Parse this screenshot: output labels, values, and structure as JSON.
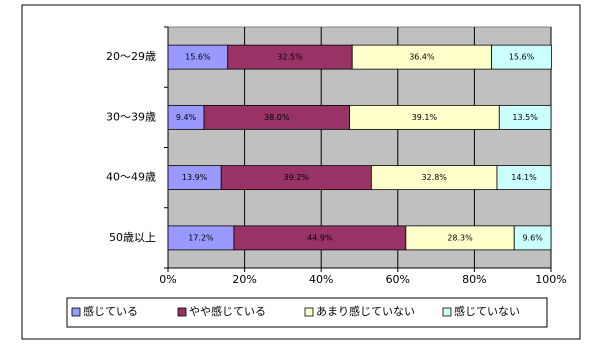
{
  "chart_data": {
    "type": "stacked-barh",
    "categories": [
      "20〜29歳",
      "30〜39歳",
      "40〜49歳",
      "50歳以上"
    ],
    "series": [
      {
        "name": "感じている",
        "color": "#9999ff",
        "values": [
          15.6,
          9.4,
          13.9,
          17.2
        ],
        "value_labels": [
          "15.6%",
          "9.4%",
          "13.9%",
          "17.2%"
        ]
      },
      {
        "name": "やや感じている",
        "color": "#993366",
        "values": [
          32.5,
          38.0,
          39.2,
          44.9
        ],
        "value_labels": [
          "32.5%",
          "38.0%",
          "39.2%",
          "44.9%"
        ]
      },
      {
        "name": "あまり感じていない",
        "color": "#ffffcc",
        "values": [
          36.4,
          39.1,
          32.8,
          28.3
        ],
        "value_labels": [
          "36.4%",
          "39.1%",
          "32.8%",
          "28.3%"
        ]
      },
      {
        "name": "感じていない",
        "color": "#ccffff",
        "values": [
          15.6,
          13.5,
          14.1,
          9.6
        ],
        "value_labels": [
          "15.6%",
          "13.5%",
          "14.1%",
          "9.6%"
        ]
      }
    ],
    "xlim": [
      0,
      100
    ],
    "xticks": [
      {
        "value": 0,
        "label": "0%"
      },
      {
        "value": 20,
        "label": "20%"
      },
      {
        "value": 40,
        "label": "40%"
      },
      {
        "value": 60,
        "label": "60%"
      },
      {
        "value": 80,
        "label": "80%"
      },
      {
        "value": 100,
        "label": "100%"
      }
    ],
    "grid": true,
    "legend": "bottom"
  }
}
